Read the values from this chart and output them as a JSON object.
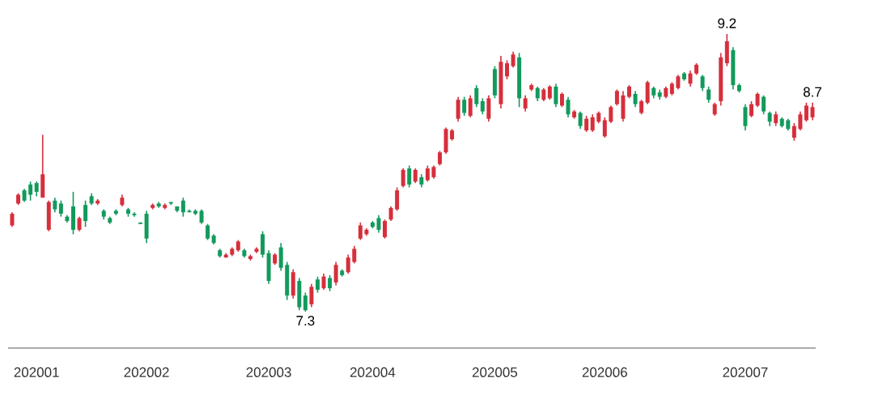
{
  "chart_data": {
    "type": "candlestick",
    "categories": [
      null,
      null,
      null,
      null,
      "202001",
      null,
      null,
      null,
      null,
      null,
      null,
      null,
      null,
      null,
      null,
      null,
      null,
      null,
      null,
      null,
      null,
      null,
      "202002",
      null,
      null,
      null,
      null,
      null,
      null,
      null,
      null,
      null,
      null,
      null,
      null,
      null,
      null,
      null,
      null,
      null,
      null,
      null,
      "202003",
      null,
      null,
      null,
      null,
      null,
      null,
      null,
      null,
      null,
      null,
      null,
      null,
      null,
      null,
      null,
      null,
      "202004",
      null,
      null,
      null,
      null,
      null,
      null,
      null,
      null,
      null,
      null,
      null,
      null,
      null,
      null,
      null,
      null,
      null,
      null,
      null,
      "202005",
      null,
      null,
      null,
      null,
      null,
      null,
      null,
      null,
      null,
      null,
      null,
      null,
      null,
      null,
      null,
      null,
      null,
      "202006",
      null,
      null,
      null,
      null,
      null,
      null,
      null,
      null,
      null,
      null,
      null,
      null,
      null,
      null,
      null,
      null,
      null,
      null,
      null,
      null,
      null,
      null,
      "202007",
      null,
      null,
      null,
      null,
      null,
      null,
      null,
      null,
      null,
      null,
      null
    ],
    "colors": [
      "#d62f3c",
      "#d62f3c",
      "#129a5c",
      "#129a5c",
      "#129a5c",
      "#d62f3c",
      "#d62f3c",
      "#129a5c",
      "#129a5c",
      "#129a5c",
      "#129a5c",
      "#d62f3c",
      "#129a5c",
      "#129a5c",
      "#d62f3c",
      "#129a5c",
      "#129a5c",
      "#129a5c",
      "#d62f3c",
      "#129a5c",
      "#129a5c",
      "#129a5c",
      "#129a5c",
      "#d62f3c",
      "#129a5c",
      "#d62f3c",
      "#129a5c",
      "#129a5c",
      "#129a5c",
      "#129a5c",
      "#129a5c",
      "#129a5c",
      "#129a5c",
      "#129a5c",
      "#129a5c",
      "#d62f3c",
      "#d62f3c",
      "#d62f3c",
      "#129a5c",
      "#d62f3c",
      "#d62f3c",
      "#129a5c",
      "#129a5c",
      "#d62f3c",
      "#129a5c",
      "#129a5c",
      "#d62f3c",
      "#129a5c",
      "#129a5c",
      "#d62f3c",
      "#129a5c",
      "#d62f3c",
      "#129a5c",
      "#d62f3c",
      "#129a5c",
      "#d62f3c",
      "#d62f3c",
      "#d62f3c",
      "#d62f3c",
      "#129a5c",
      "#129a5c",
      "#d62f3c",
      "#d62f3c",
      "#d62f3c",
      "#d62f3c",
      "#129a5c",
      "#d62f3c",
      "#129a5c",
      "#d62f3c",
      "#d62f3c",
      "#d62f3c",
      "#d62f3c",
      "#d62f3c",
      "#d62f3c",
      "#129a5c",
      "#d62f3c",
      "#129a5c",
      "#129a5c",
      "#d62f3c",
      "#129a5c",
      "#d62f3c",
      "#d62f3c",
      "#d62f3c",
      "#129a5c",
      "#d62f3c",
      "#d62f3c",
      "#129a5c",
      "#d62f3c",
      "#d62f3c",
      "#129a5c",
      "#d62f3c",
      "#129a5c",
      "#d62f3c",
      "#129a5c",
      "#d62f3c",
      "#d62f3c",
      "#d62f3c",
      "#d62f3c",
      "#d62f3c",
      "#d62f3c",
      "#d62f3c",
      "#d62f3c",
      "#129a5c",
      "#d62f3c",
      "#d62f3c",
      "#129a5c",
      "#129a5c",
      "#d62f3c",
      "#d62f3c",
      "#d62f3c",
      "#129a5c",
      "#d62f3c",
      "#d62f3c",
      "#129a5c",
      "#129a5c",
      "#d62f3c",
      "#d62f3c",
      "#d62f3c",
      "#129a5c",
      "#129a5c",
      "#129a5c",
      "#d62f3c",
      "#d62f3c",
      "#129a5c",
      "#129a5c",
      "#d62f3c",
      "#129a5c",
      "#129a5c",
      "#d62f3c",
      "#d62f3c",
      "#d62f3c",
      "#d62f3c"
    ],
    "ohlc": [
      [
        7.89,
        7.98,
        7.88,
        7.97
      ],
      [
        8.04,
        8.11,
        8.03,
        8.1
      ],
      [
        8.13,
        8.14,
        8.05,
        8.06
      ],
      [
        8.17,
        8.19,
        8.06,
        8.1
      ],
      [
        8.18,
        8.19,
        8.09,
        8.12
      ],
      [
        8.08,
        8.51,
        8.08,
        8.24
      ],
      [
        7.86,
        8.06,
        7.85,
        8.05
      ],
      [
        8.06,
        8.08,
        7.98,
        8.0
      ],
      [
        8.04,
        8.06,
        7.95,
        7.97
      ],
      [
        7.95,
        7.96,
        7.91,
        7.92
      ],
      [
        8.02,
        8.12,
        7.83,
        7.86
      ],
      [
        7.86,
        7.95,
        7.85,
        7.94
      ],
      [
        8.03,
        8.06,
        7.88,
        7.92
      ],
      [
        8.09,
        8.11,
        8.03,
        8.04
      ],
      [
        8.04,
        8.07,
        8.03,
        8.06
      ],
      [
        7.99,
        8.0,
        7.93,
        7.95
      ],
      [
        7.94,
        7.95,
        7.9,
        7.91
      ],
      [
        7.99,
        8.0,
        7.96,
        7.97
      ],
      [
        8.03,
        8.1,
        8.02,
        8.08
      ],
      [
        8.0,
        8.01,
        7.95,
        7.97
      ],
      [
        7.97,
        7.98,
        7.95,
        7.96
      ],
      [
        7.91,
        7.91,
        7.9,
        7.9
      ],
      [
        7.97,
        7.99,
        7.77,
        7.8
      ],
      [
        8.01,
        8.04,
        8.0,
        8.03
      ],
      [
        8.04,
        8.05,
        8.01,
        8.02
      ],
      [
        8.01,
        8.04,
        8.0,
        8.03
      ],
      [
        8.05,
        8.05,
        8.03,
        8.04
      ],
      [
        8.02,
        8.02,
        7.98,
        7.99
      ],
      [
        8.06,
        8.08,
        7.95,
        7.98
      ],
      [
        7.99,
        8.0,
        7.98,
        7.98
      ],
      [
        7.99,
        8.0,
        7.96,
        7.97
      ],
      [
        7.99,
        8.0,
        7.9,
        7.91
      ],
      [
        7.89,
        7.9,
        7.79,
        7.8
      ],
      [
        7.82,
        7.83,
        7.76,
        7.77
      ],
      [
        7.72,
        7.73,
        7.67,
        7.68
      ],
      [
        7.67,
        7.7,
        7.67,
        7.69
      ],
      [
        7.69,
        7.74,
        7.68,
        7.73
      ],
      [
        7.72,
        7.79,
        7.71,
        7.78
      ],
      [
        7.72,
        7.73,
        7.67,
        7.68
      ],
      [
        7.66,
        7.69,
        7.65,
        7.68
      ],
      [
        7.71,
        7.74,
        7.7,
        7.73
      ],
      [
        7.83,
        7.85,
        7.67,
        7.69
      ],
      [
        7.7,
        7.72,
        7.49,
        7.51
      ],
      [
        7.63,
        7.7,
        7.62,
        7.69
      ],
      [
        7.74,
        7.77,
        7.58,
        7.6
      ],
      [
        7.62,
        7.64,
        7.38,
        7.41
      ],
      [
        7.41,
        7.59,
        7.39,
        7.57
      ],
      [
        7.51,
        7.53,
        7.31,
        7.33
      ],
      [
        7.41,
        7.43,
        7.3,
        7.31
      ],
      [
        7.35,
        7.49,
        7.33,
        7.47
      ],
      [
        7.52,
        7.54,
        7.43,
        7.45
      ],
      [
        7.46,
        7.56,
        7.45,
        7.54
      ],
      [
        7.53,
        7.55,
        7.44,
        7.46
      ],
      [
        7.5,
        7.64,
        7.48,
        7.62
      ],
      [
        7.58,
        7.59,
        7.54,
        7.55
      ],
      [
        7.57,
        7.69,
        7.56,
        7.67
      ],
      [
        7.64,
        7.75,
        7.63,
        7.73
      ],
      [
        7.8,
        7.91,
        7.79,
        7.89
      ],
      [
        7.83,
        7.87,
        7.82,
        7.86
      ],
      [
        7.91,
        7.92,
        7.87,
        7.88
      ],
      [
        7.94,
        7.96,
        7.84,
        7.86
      ],
      [
        7.81,
        7.93,
        7.8,
        7.92
      ],
      [
        7.93,
        8.02,
        7.92,
        8.01
      ],
      [
        8.0,
        8.15,
        7.99,
        8.13
      ],
      [
        8.16,
        8.28,
        8.15,
        8.27
      ],
      [
        8.28,
        8.3,
        8.15,
        8.17
      ],
      [
        8.19,
        8.28,
        8.18,
        8.27
      ],
      [
        8.22,
        8.24,
        8.15,
        8.17
      ],
      [
        8.2,
        8.3,
        8.19,
        8.28
      ],
      [
        8.22,
        8.3,
        8.21,
        8.29
      ],
      [
        8.31,
        8.4,
        8.3,
        8.39
      ],
      [
        8.39,
        8.56,
        8.38,
        8.55
      ],
      [
        8.48,
        8.55,
        8.47,
        8.54
      ],
      [
        8.62,
        8.77,
        8.6,
        8.75
      ],
      [
        8.75,
        8.77,
        8.64,
        8.66
      ],
      [
        8.64,
        8.78,
        8.63,
        8.76
      ],
      [
        8.83,
        8.85,
        8.7,
        8.72
      ],
      [
        8.74,
        8.76,
        8.65,
        8.67
      ],
      [
        8.62,
        8.78,
        8.6,
        8.76
      ],
      [
        8.96,
        8.98,
        8.76,
        8.78
      ],
      [
        8.72,
        9.05,
        8.69,
        9.01
      ],
      [
        8.91,
        9.02,
        8.89,
        9.0
      ],
      [
        8.98,
        9.08,
        8.97,
        9.06
      ],
      [
        9.04,
        9.07,
        8.7,
        8.76
      ],
      [
        8.69,
        8.78,
        8.67,
        8.76
      ],
      [
        8.82,
        8.86,
        8.81,
        8.85
      ],
      [
        8.83,
        8.84,
        8.74,
        8.76
      ],
      [
        8.75,
        8.83,
        8.74,
        8.82
      ],
      [
        8.76,
        8.85,
        8.75,
        8.84
      ],
      [
        8.84,
        8.86,
        8.7,
        8.72
      ],
      [
        8.71,
        8.8,
        8.7,
        8.79
      ],
      [
        8.75,
        8.77,
        8.63,
        8.65
      ],
      [
        8.63,
        8.68,
        8.62,
        8.67
      ],
      [
        8.66,
        8.67,
        8.55,
        8.57
      ],
      [
        8.54,
        8.64,
        8.53,
        8.62
      ],
      [
        8.54,
        8.65,
        8.53,
        8.63
      ],
      [
        8.6,
        8.67,
        8.59,
        8.66
      ],
      [
        8.5,
        8.63,
        8.49,
        8.61
      ],
      [
        8.6,
        8.71,
        8.59,
        8.7
      ],
      [
        8.72,
        8.82,
        8.71,
        8.81
      ],
      [
        8.62,
        8.81,
        8.6,
        8.78
      ],
      [
        8.77,
        8.85,
        8.76,
        8.84
      ],
      [
        8.79,
        8.81,
        8.7,
        8.72
      ],
      [
        8.66,
        8.75,
        8.65,
        8.74
      ],
      [
        8.73,
        8.88,
        8.72,
        8.87
      ],
      [
        8.83,
        8.84,
        8.76,
        8.78
      ],
      [
        8.8,
        8.82,
        8.75,
        8.77
      ],
      [
        8.77,
        8.84,
        8.76,
        8.83
      ],
      [
        8.79,
        8.87,
        8.78,
        8.86
      ],
      [
        8.83,
        8.92,
        8.82,
        8.91
      ],
      [
        8.93,
        8.94,
        8.88,
        8.89
      ],
      [
        8.86,
        8.95,
        8.84,
        8.93
      ],
      [
        8.93,
        9.0,
        8.92,
        8.99
      ],
      [
        8.91,
        8.92,
        8.81,
        8.83
      ],
      [
        8.82,
        8.84,
        8.73,
        8.75
      ],
      [
        8.65,
        8.73,
        8.64,
        8.72
      ],
      [
        8.74,
        9.07,
        8.71,
        9.04
      ],
      [
        9.0,
        9.2,
        8.98,
        9.15
      ],
      [
        9.09,
        9.11,
        8.82,
        8.85
      ],
      [
        8.85,
        8.86,
        8.8,
        8.81
      ],
      [
        8.7,
        8.72,
        8.54,
        8.57
      ],
      [
        8.64,
        8.74,
        8.63,
        8.72
      ],
      [
        8.71,
        8.8,
        8.7,
        8.79
      ],
      [
        8.77,
        8.78,
        8.65,
        8.67
      ],
      [
        8.66,
        8.67,
        8.57,
        8.6
      ],
      [
        8.59,
        8.67,
        8.57,
        8.65
      ],
      [
        8.62,
        8.63,
        8.56,
        8.57
      ],
      [
        8.61,
        8.62,
        8.54,
        8.55
      ],
      [
        8.49,
        8.59,
        8.47,
        8.57
      ],
      [
        8.55,
        8.67,
        8.54,
        8.65
      ],
      [
        8.61,
        8.73,
        8.6,
        8.71
      ],
      [
        8.63,
        8.73,
        8.61,
        8.7
      ]
    ],
    "annotations": [
      {
        "text": "9.2",
        "y": 9.2
      },
      {
        "text": "7.3",
        "y": 7.3
      },
      {
        "text": "8.7",
        "y": 8.7
      }
    ]
  }
}
